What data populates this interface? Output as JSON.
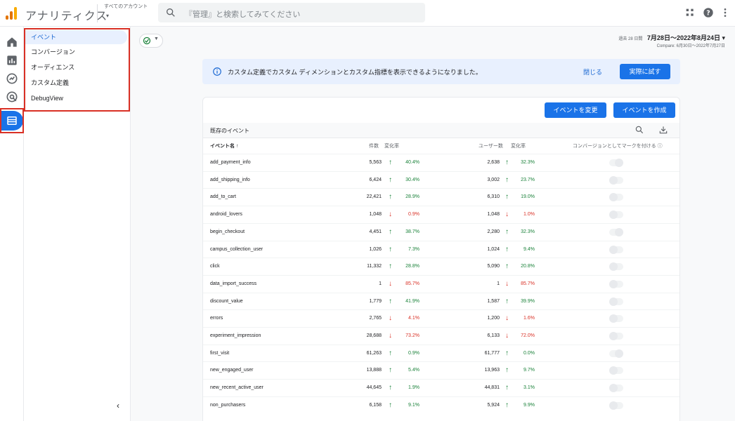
{
  "app": {
    "title": "アナリティクス",
    "account_label": "すべてのアカウント",
    "account_caret": "▾",
    "search_placeholder": "『管理』と検索してみてください",
    "logo_colors": [
      "#f9ab00",
      "#e37400",
      "#e37400"
    ]
  },
  "rail": {
    "items": [
      "home-icon",
      "reports-icon",
      "explore-icon",
      "advertising-icon",
      "configure-icon"
    ],
    "settings": "settings-icon"
  },
  "subnav": {
    "items": [
      {
        "label": "イベント",
        "active": true
      },
      {
        "label": "コンバージョン",
        "active": false
      },
      {
        "label": "オーディエンス",
        "active": false
      },
      {
        "label": "カスタム定義",
        "active": false
      },
      {
        "label": "DebugView",
        "active": false
      }
    ],
    "collapse": "‹"
  },
  "header": {
    "date_prefix": "過去 28 日間",
    "date_range": "7月28日〜2022年8月24日 ▾",
    "compare": "Compare: 6月30日〜2022年7月27日"
  },
  "banner": {
    "text": "カスタム定義でカスタム ディメンションとカスタム指標を表示できるようになりました。",
    "close": "閉じる",
    "try": "実際に試す"
  },
  "card": {
    "modify_button": "イベントを変更",
    "create_button": "イベントを作成",
    "title": "既存のイベント",
    "columns": {
      "name": "イベント名 ↑",
      "count": "件数",
      "change1": "変化率",
      "users": "ユーザー数",
      "change2": "変化率",
      "mark": "コンバージョンとしてマークを付ける ⓘ"
    },
    "rows": [
      {
        "name": "add_payment_info",
        "count": "5,563",
        "c_dir": "up",
        "c_pct": "40.4%",
        "users": "2,638",
        "u_dir": "up",
        "u_pct": "32.3%",
        "toggle": "on-ish"
      },
      {
        "name": "add_shipping_info",
        "count": "6,424",
        "c_dir": "up",
        "c_pct": "30.4%",
        "users": "3,002",
        "u_dir": "up",
        "u_pct": "23.7%",
        "toggle": "off"
      },
      {
        "name": "add_to_cart",
        "count": "22,421",
        "c_dir": "up",
        "c_pct": "28.9%",
        "users": "6,310",
        "u_dir": "up",
        "u_pct": "19.0%",
        "toggle": "off"
      },
      {
        "name": "android_lovers",
        "count": "1,048",
        "c_dir": "down",
        "c_pct": "0.9%",
        "users": "1,048",
        "u_dir": "down",
        "u_pct": "1.0%",
        "toggle": "off"
      },
      {
        "name": "begin_checkout",
        "count": "4,451",
        "c_dir": "up",
        "c_pct": "38.7%",
        "users": "2,280",
        "u_dir": "up",
        "u_pct": "32.3%",
        "toggle": "on-ish"
      },
      {
        "name": "campus_collection_user",
        "count": "1,026",
        "c_dir": "up",
        "c_pct": "7.3%",
        "users": "1,024",
        "u_dir": "up",
        "u_pct": "9.4%",
        "toggle": "off"
      },
      {
        "name": "click",
        "count": "11,332",
        "c_dir": "up",
        "c_pct": "28.8%",
        "users": "5,090",
        "u_dir": "up",
        "u_pct": "20.8%",
        "toggle": "off"
      },
      {
        "name": "data_import_success",
        "count": "1",
        "c_dir": "down",
        "c_pct": "85.7%",
        "users": "1",
        "u_dir": "down",
        "u_pct": "85.7%",
        "toggle": "off"
      },
      {
        "name": "discount_value",
        "count": "1,779",
        "c_dir": "up",
        "c_pct": "41.9%",
        "users": "1,587",
        "u_dir": "up",
        "u_pct": "39.9%",
        "toggle": "off"
      },
      {
        "name": "errors",
        "count": "2,765",
        "c_dir": "down",
        "c_pct": "4.1%",
        "users": "1,200",
        "u_dir": "down",
        "u_pct": "1.6%",
        "toggle": "off"
      },
      {
        "name": "experiment_impression",
        "count": "28,688",
        "c_dir": "down",
        "c_pct": "73.2%",
        "users": "6,133",
        "u_dir": "down",
        "u_pct": "72.0%",
        "toggle": "off"
      },
      {
        "name": "first_visit",
        "count": "61,263",
        "c_dir": "up",
        "c_pct": "0.9%",
        "users": "61,777",
        "u_dir": "up",
        "u_pct": "0.0%",
        "toggle": "on-ish"
      },
      {
        "name": "new_engaged_user",
        "count": "13,888",
        "c_dir": "up",
        "c_pct": "5.4%",
        "users": "13,963",
        "u_dir": "up",
        "u_pct": "9.7%",
        "toggle": "off"
      },
      {
        "name": "new_recent_active_user",
        "count": "44,645",
        "c_dir": "up",
        "c_pct": "1.9%",
        "users": "44,831",
        "u_dir": "up",
        "u_pct": "3.1%",
        "toggle": "off"
      },
      {
        "name": "non_purchasers",
        "count": "6,158",
        "c_dir": "up",
        "c_pct": "9.1%",
        "users": "5,924",
        "u_dir": "up",
        "u_pct": "9.9%",
        "toggle": "off"
      }
    ]
  },
  "colors": {
    "primary": "#1a73e8",
    "up": "#188038",
    "down": "#d93025",
    "highlight_box": "#d93025"
  }
}
